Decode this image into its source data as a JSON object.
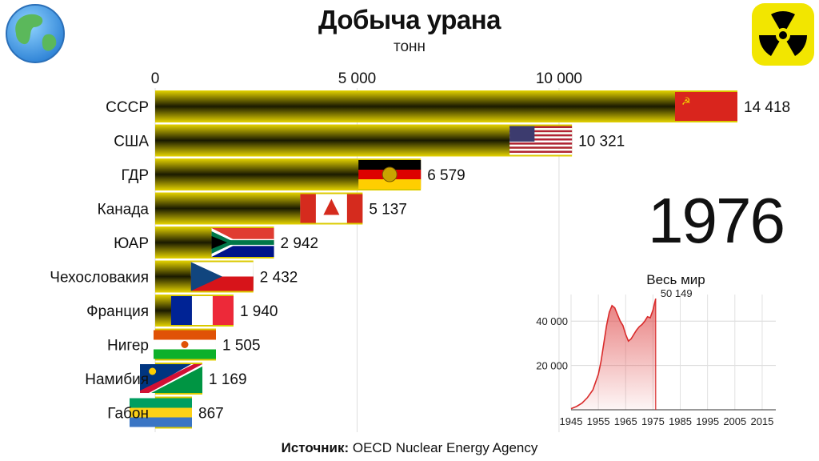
{
  "header": {
    "title": "Добыча урана",
    "subtitle": "тонн"
  },
  "year": "1976",
  "world": {
    "title": "Весь мир",
    "current_value_label": "50 149",
    "y_ticks": [
      "20 000",
      "40 000"
    ],
    "x_ticks": [
      "1945",
      "1955",
      "1965",
      "1975",
      "1985",
      "1995",
      "2005",
      "2015"
    ]
  },
  "source": {
    "label": "Источник:",
    "text": "OECD Nuclear Energy Agency"
  },
  "icons": {
    "left": "globe-icon",
    "right": "radiation-icon"
  },
  "colors": {
    "bar_stripe_dark": "#1a1a00",
    "bar_stripe_light": "#e6d400",
    "area_fill": "#e05050",
    "area_line": "#d92b2b"
  },
  "chart_data": [
    {
      "type": "bar",
      "title": "Добыча урана",
      "subtitle": "тонн",
      "categories": [
        "СССР",
        "США",
        "ГДР",
        "Канада",
        "ЮАР",
        "Чехословакия",
        "Франция",
        "Нигер",
        "Намибия",
        "Габон"
      ],
      "values": [
        14418,
        10321,
        6579,
        5137,
        2942,
        2432,
        1940,
        1505,
        1169,
        867
      ],
      "value_labels": [
        "14 418",
        "10 321",
        "6 579",
        "5 137",
        "2 942",
        "2 432",
        "1 940",
        "1 505",
        "1 169",
        "867"
      ],
      "x_ticks": [
        0,
        5000,
        10000
      ],
      "x_tick_labels": [
        "0",
        "5 000",
        "10 000"
      ],
      "xlim": [
        0,
        14418
      ],
      "orientation": "horizontal",
      "grid": true
    },
    {
      "type": "area",
      "title": "Весь мир",
      "x": [
        1945,
        1947,
        1949,
        1951,
        1953,
        1955,
        1956,
        1957,
        1958,
        1959,
        1960,
        1961,
        1962,
        1963,
        1964,
        1965,
        1966,
        1967,
        1968,
        1969,
        1970,
        1971,
        1972,
        1973,
        1974,
        1975,
        1976
      ],
      "y": [
        500,
        1500,
        3000,
        5500,
        9000,
        16000,
        22000,
        30000,
        38000,
        44000,
        47000,
        46000,
        43000,
        40000,
        38000,
        34000,
        31000,
        32000,
        34000,
        36000,
        37500,
        38500,
        40000,
        42000,
        41500,
        45000,
        50149
      ],
      "annotation": "50 149",
      "y_ticks": [
        20000,
        40000
      ],
      "ylim": [
        0,
        52000
      ],
      "xlim": [
        1945,
        2020
      ],
      "x_ticks": [
        1945,
        1955,
        1965,
        1975,
        1985,
        1995,
        2005,
        2015
      ],
      "grid": true
    }
  ]
}
